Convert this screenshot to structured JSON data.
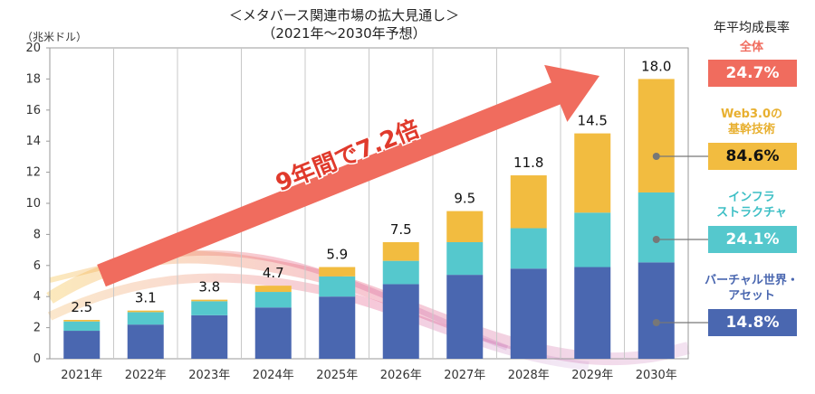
{
  "header": {
    "title": "＜メタバース関連市場の拡大見通し＞",
    "subtitle": "（2021年～2030年予想）",
    "unit": "（兆米ドル）"
  },
  "annotation": {
    "arrow_text": "9年間で7.2倍",
    "arrow_color": "#F06C5E"
  },
  "legend": {
    "heading": "年平均成長率",
    "items": [
      {
        "label": "全体",
        "rate": "24.7%",
        "label_color": "#F06C5E",
        "box_color": "#F06C5E",
        "text_dark": false
      },
      {
        "label": "Web3.0の\n基幹技術",
        "rate": "84.6%",
        "label_color": "#E8B030",
        "box_color": "#F2BC40",
        "text_dark": true
      },
      {
        "label": "インフラ\nストラクチャ",
        "rate": "24.1%",
        "label_color": "#3DBFC5",
        "box_color": "#55C8CD",
        "text_dark": false
      },
      {
        "label": "バーチャル世界・\nアセット",
        "rate": "14.8%",
        "label_color": "#4A67B0",
        "box_color": "#4A67B0",
        "text_dark": false
      }
    ]
  },
  "chart_data": {
    "type": "bar",
    "stacked": true,
    "categories": [
      "2021年",
      "2022年",
      "2023年",
      "2024年",
      "2025年",
      "2026年",
      "2027年",
      "2028年",
      "2029年",
      "2030年"
    ],
    "totals": [
      "2.5",
      "3.1",
      "3.8",
      "4.7",
      "5.9",
      "7.5",
      "9.5",
      "11.8",
      "14.5",
      "18.0"
    ],
    "series": [
      {
        "name": "バーチャル世界・アセット",
        "color": "#4A67B0",
        "values": [
          1.8,
          2.2,
          2.8,
          3.3,
          4.0,
          4.8,
          5.4,
          5.8,
          5.9,
          6.2
        ]
      },
      {
        "name": "インフラストラクチャ",
        "color": "#55C8CD",
        "values": [
          0.6,
          0.8,
          0.9,
          1.0,
          1.3,
          1.5,
          2.1,
          2.6,
          3.5,
          4.5
        ]
      },
      {
        "name": "Web3.0の基幹技術",
        "color": "#F2BC40",
        "values": [
          0.1,
          0.1,
          0.1,
          0.4,
          0.6,
          1.2,
          2.0,
          3.4,
          5.1,
          7.3
        ]
      }
    ],
    "ylim": [
      0,
      20
    ],
    "yticks": [
      "0",
      "2",
      "4",
      "6",
      "8",
      "10",
      "12",
      "14",
      "16",
      "18",
      "20"
    ],
    "grid": "vertical-lines-between-categories",
    "legend_position": "right"
  }
}
